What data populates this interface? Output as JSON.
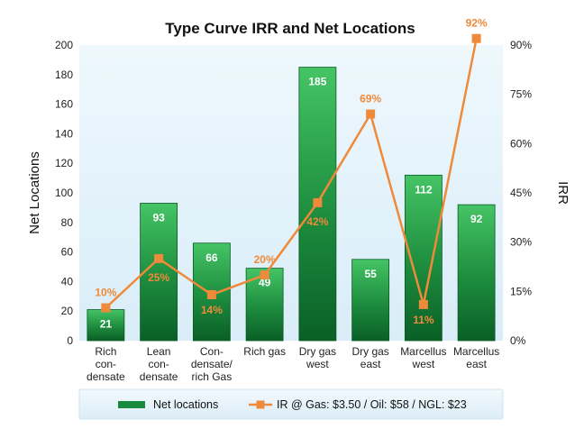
{
  "colors": {
    "bar_light": "#3fbf5f",
    "bar_dark": "#0b6e2c",
    "line": "#ee8a3a",
    "plot_bg": "#e5f3fb",
    "legend_bg": "#e8f4fb"
  },
  "chart_data": {
    "type": "bar",
    "title": "Type Curve IRR and Net Locations",
    "ylabel": "Net Locations",
    "y2label": "IRR",
    "ylim": [
      0,
      200
    ],
    "y2lim": [
      0,
      0.9
    ],
    "yticks": [
      "0",
      "20",
      "40",
      "60",
      "80",
      "100",
      "120",
      "140",
      "160",
      "180",
      "200"
    ],
    "y2ticks": [
      "0%",
      "15%",
      "30%",
      "45%",
      "60%",
      "75%",
      "90%"
    ],
    "categories": [
      [
        "Rich",
        "con-",
        "densate"
      ],
      [
        "Lean",
        "con-",
        "densate"
      ],
      [
        "Con-",
        "densate/",
        "rich Gas"
      ],
      [
        "Rich gas"
      ],
      [
        "Dry gas",
        "west"
      ],
      [
        "Dry gas",
        "east"
      ],
      [
        "Marcellus",
        "west"
      ],
      [
        "Marcellus",
        "east"
      ]
    ],
    "series": [
      {
        "name": "Net locations",
        "type": "bar",
        "values": [
          21,
          93,
          66,
          49,
          185,
          55,
          112,
          92
        ],
        "labels": [
          "21",
          "93",
          "66",
          "49",
          "185",
          "55",
          "112",
          "92"
        ]
      },
      {
        "name": "IR @ Gas: $3.50 / Oil: $58 / NGL: $23",
        "type": "line",
        "axis": "right",
        "values": [
          0.1,
          0.25,
          0.14,
          0.2,
          0.42,
          0.69,
          0.11,
          0.92
        ],
        "labels": [
          "10%",
          "25%",
          "14%",
          "20%",
          "42%",
          "69%",
          "11%",
          "92%"
        ]
      }
    ],
    "legend": [
      "Net locations",
      "IR @ Gas: $3.50 / Oil: $58 / NGL: $23"
    ]
  }
}
